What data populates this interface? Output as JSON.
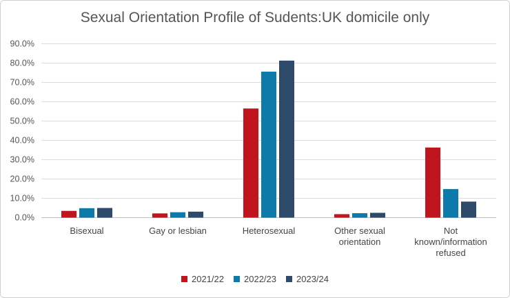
{
  "chart_data": {
    "type": "bar",
    "title": "Sexual Orientation Profile of Sudents:UK domicile only",
    "xlabel": "",
    "ylabel": "",
    "categories": [
      [
        "Bisexual"
      ],
      [
        "Gay or lesbian"
      ],
      [
        "Heterosexual"
      ],
      [
        "Other sexual",
        "orientation"
      ],
      [
        "Not",
        "known/information",
        "refused"
      ]
    ],
    "series": [
      {
        "name": "2021/22",
        "color": "#c0151f",
        "values": [
          3.5,
          2.2,
          56.5,
          1.8,
          36.3
        ]
      },
      {
        "name": "2022/23",
        "color": "#0e7aab",
        "values": [
          4.9,
          2.8,
          75.6,
          2.3,
          14.8
        ]
      },
      {
        "name": "2023/24",
        "color": "#2e4a6b",
        "values": [
          5.0,
          3.1,
          81.3,
          2.5,
          8.3
        ]
      }
    ],
    "ylim": [
      0,
      90
    ],
    "yticks": [
      "0.0%",
      "10.0%",
      "20.0%",
      "30.0%",
      "40.0%",
      "50.0%",
      "60.0%",
      "70.0%",
      "80.0%",
      "90.0%"
    ],
    "grid": true,
    "legend_position": "bottom"
  }
}
